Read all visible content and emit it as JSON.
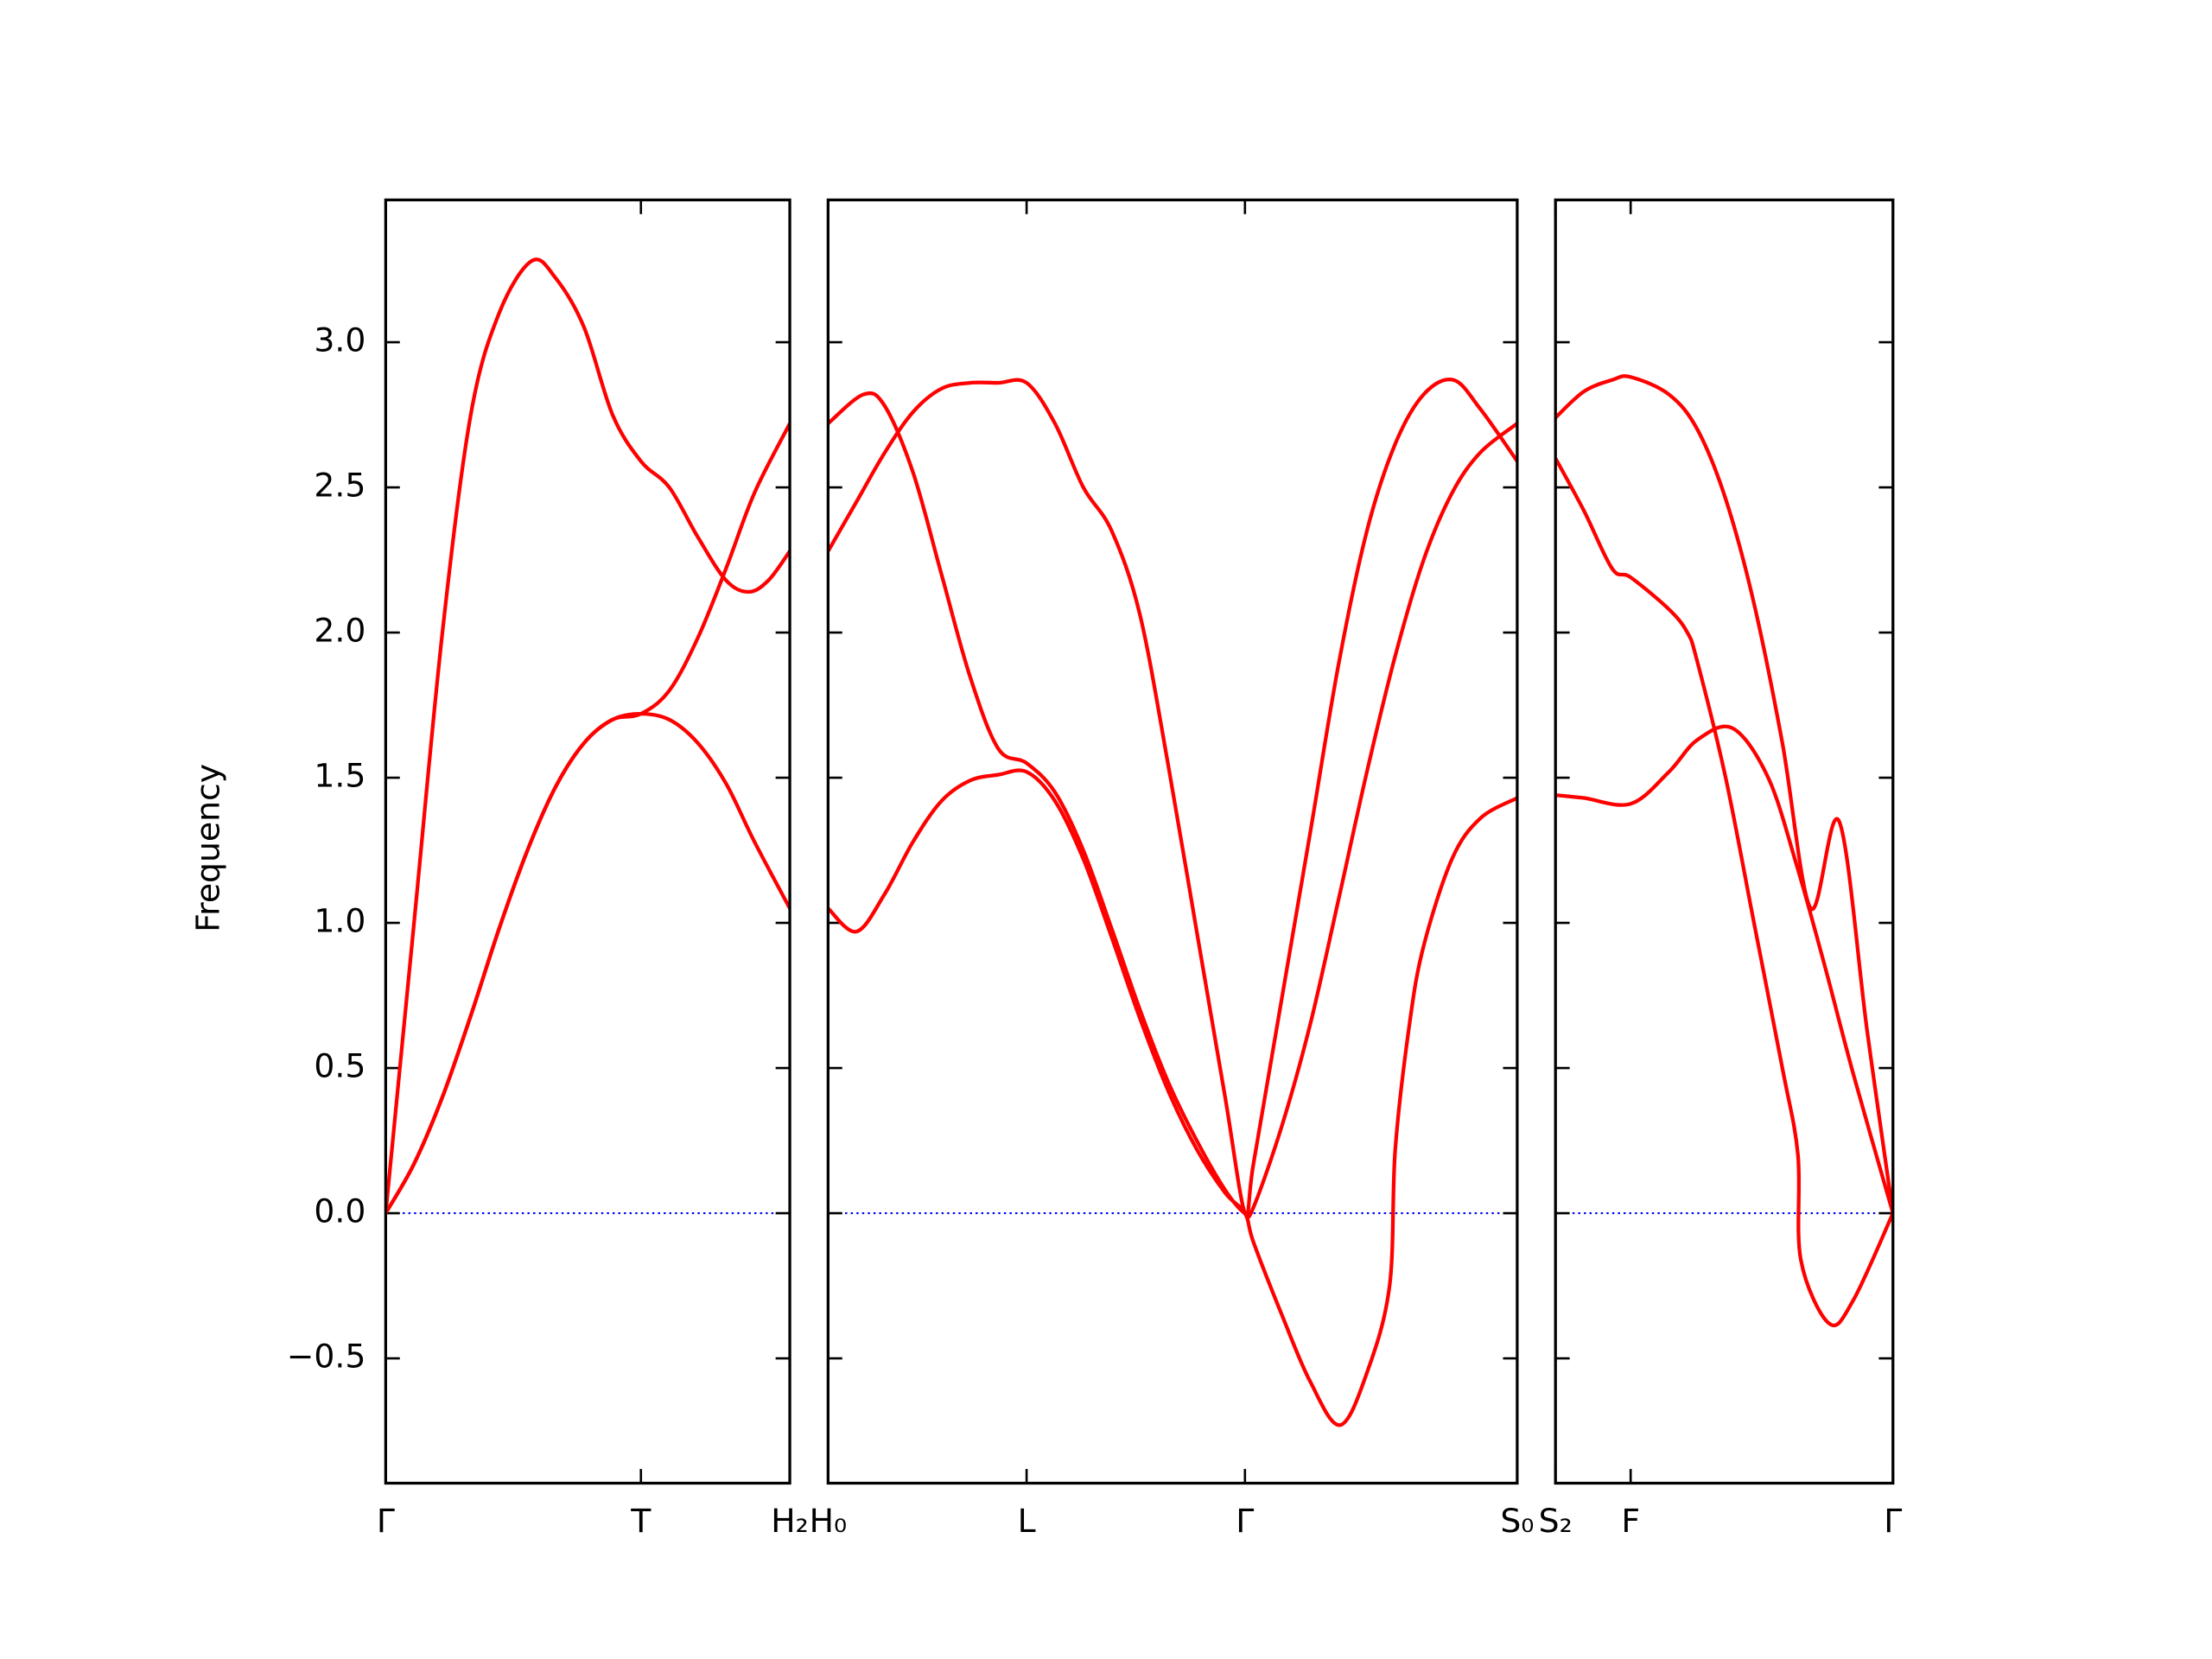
{
  "chart_data": [
    {
      "type": "line",
      "ylabel": "Frequency",
      "show_ytick_labels": true,
      "xlim": [
        0,
        2.85
      ],
      "ylim": [
        -0.93,
        3.49
      ],
      "xticks": [
        {
          "value": 0,
          "label": "Γ"
        },
        {
          "value": 1.8,
          "label": "T"
        },
        {
          "value": 2.85,
          "label": "H₂"
        }
      ],
      "yticks": [
        {
          "value": -0.5,
          "label": "−0.5"
        },
        {
          "value": 0,
          "label": "0.0"
        },
        0.5,
        {
          "value": 1,
          "label": "1.0"
        },
        1.5,
        {
          "value": 2,
          "label": "2.0"
        },
        2.5,
        {
          "value": 3,
          "label": "3.0"
        }
      ],
      "hline": 0,
      "hline_color": "#0000ff",
      "series": [
        {
          "color": "#ff0000",
          "x": [
            0,
            0.2,
            0.4,
            0.6,
            0.8,
            1.03,
            1.2,
            1.4,
            1.6,
            1.8,
            2.0,
            2.2,
            2.4,
            2.56,
            2.7,
            2.85
          ],
          "values": [
            0,
            1.0,
            2.0,
            2.75,
            3.1,
            3.28,
            3.22,
            3.05,
            2.75,
            2.59,
            2.5,
            2.33,
            2.18,
            2.14,
            2.18,
            2.28
          ]
        },
        {
          "color": "#ff0000",
          "x": [
            0,
            0.2,
            0.4,
            0.6,
            0.8,
            1.0,
            1.2,
            1.4,
            1.6,
            1.8,
            2.0,
            2.2,
            2.4,
            2.6,
            2.85
          ],
          "values": [
            0,
            0.17,
            0.4,
            0.68,
            0.98,
            1.25,
            1.47,
            1.62,
            1.7,
            1.72,
            1.7,
            1.62,
            1.48,
            1.28,
            1.05
          ]
        },
        {
          "color": "#ff0000",
          "x": [
            0,
            0.2,
            0.4,
            0.6,
            0.8,
            1.0,
            1.2,
            1.4,
            1.6,
            1.8,
            2.0,
            2.2,
            2.4,
            2.6,
            2.85
          ],
          "values": [
            0,
            0.17,
            0.4,
            0.68,
            0.98,
            1.25,
            1.47,
            1.62,
            1.7,
            1.72,
            1.8,
            1.98,
            2.22,
            2.48,
            2.72
          ]
        }
      ]
    },
    {
      "type": "line",
      "show_ytick_labels": false,
      "xlim": [
        0,
        4.86
      ],
      "ylim": [
        -0.93,
        3.49
      ],
      "xticks": [
        {
          "value": 0,
          "label": "H₀"
        },
        {
          "value": 1.4,
          "label": "L"
        },
        {
          "value": 2.94,
          "label": "Γ"
        },
        {
          "value": 4.86,
          "label": "S₀"
        }
      ],
      "yticks": [
        -0.5,
        0,
        0.5,
        1,
        1.5,
        2,
        2.5,
        3
      ],
      "hline": 0,
      "hline_color": "#0000ff",
      "series": [
        {
          "color": "#ff0000",
          "x": [
            0,
            0.2,
            0.4,
            0.6,
            0.8,
            1.0,
            1.2,
            1.4,
            1.6,
            1.8,
            2.0,
            2.2,
            2.4,
            2.6,
            2.8,
            2.94,
            3.0,
            3.2,
            3.4,
            3.6,
            3.8,
            4.0,
            4.2,
            4.41,
            4.6,
            4.86
          ],
          "values": [
            2.28,
            2.45,
            2.62,
            2.76,
            2.84,
            2.86,
            2.86,
            2.86,
            2.72,
            2.5,
            2.35,
            2.06,
            1.54,
            0.97,
            0.4,
            0,
            0.17,
            0.74,
            1.31,
            1.89,
            2.35,
            2.65,
            2.82,
            2.87,
            2.77,
            2.59
          ]
        },
        {
          "color": "#ff0000",
          "x": [
            0,
            0.25,
            0.4,
            0.6,
            0.8,
            1.0,
            1.2,
            1.4,
            1.6,
            1.8,
            2.0,
            2.2,
            2.4,
            2.6,
            2.8,
            2.94,
            3.0,
            3.2,
            3.4,
            3.6,
            3.8,
            4.0,
            4.2,
            4.4,
            4.6,
            4.86
          ],
          "values": [
            2.72,
            2.82,
            2.78,
            2.55,
            2.2,
            1.85,
            1.6,
            1.55,
            1.45,
            1.25,
            0.98,
            0.7,
            0.45,
            0.25,
            0.08,
            0,
            0.02,
            0.3,
            0.65,
            1.08,
            1.52,
            1.92,
            2.25,
            2.48,
            2.62,
            2.72
          ]
        },
        {
          "color": "#ff0000",
          "x": [
            0,
            0.2,
            0.4,
            0.6,
            0.8,
            1.0,
            1.2,
            1.4,
            1.6,
            1.8,
            2.0,
            2.2,
            2.4,
            2.6,
            2.8,
            2.94,
            3.0,
            3.2,
            3.4,
            3.61,
            3.8,
            3.96,
            4.0,
            4.1,
            4.2,
            4.4,
            4.6,
            4.86
          ],
          "values": [
            1.05,
            0.97,
            1.1,
            1.28,
            1.42,
            1.49,
            1.51,
            1.52,
            1.42,
            1.22,
            0.95,
            0.67,
            0.42,
            0.22,
            0.07,
            0,
            -0.1,
            -0.35,
            -0.58,
            -0.73,
            -0.55,
            -0.25,
            0.22,
            0.65,
            0.92,
            1.22,
            1.36,
            1.43
          ]
        }
      ]
    },
    {
      "type": "line",
      "show_ytick_labels": false,
      "xlim": [
        0,
        2.38
      ],
      "ylim": [
        -0.93,
        3.49
      ],
      "xticks": [
        {
          "value": 0,
          "label": "S₂"
        },
        {
          "value": 0.53,
          "label": "F"
        },
        {
          "value": 2.38,
          "label": "Γ"
        }
      ],
      "yticks": [
        -0.5,
        0,
        0.5,
        1,
        1.5,
        2,
        2.5,
        3
      ],
      "hline": 0,
      "hline_color": "#0000ff",
      "series": [
        {
          "color": "#ff0000",
          "x": [
            0,
            0.2,
            0.4,
            0.53,
            0.8,
            1.0,
            1.2,
            1.4,
            1.6,
            1.8,
            2.0,
            2.2,
            2.38
          ],
          "values": [
            2.74,
            2.83,
            2.87,
            2.88,
            2.82,
            2.7,
            2.46,
            2.1,
            1.62,
            1.05,
            1.35,
            0.62,
            0
          ]
        },
        {
          "color": "#ff0000",
          "x": [
            0,
            0.2,
            0.4,
            0.53,
            0.8,
            0.93,
            1.0,
            1.2,
            1.4,
            1.6,
            1.71,
            1.73,
            1.93,
            2.1,
            2.38
          ],
          "values": [
            2.6,
            2.42,
            2.22,
            2.19,
            2.08,
            2.0,
            1.9,
            1.5,
            1.0,
            0.5,
            0.2,
            -0.16,
            -0.38,
            -0.3,
            0
          ]
        },
        {
          "color": "#ff0000",
          "x": [
            0,
            0.2,
            0.53,
            0.8,
            1.0,
            1.25,
            1.5,
            1.7,
            1.9,
            2.1,
            2.38
          ],
          "values": [
            1.44,
            1.43,
            1.41,
            1.52,
            1.63,
            1.67,
            1.5,
            1.2,
            0.85,
            0.48,
            0
          ]
        }
      ]
    }
  ]
}
